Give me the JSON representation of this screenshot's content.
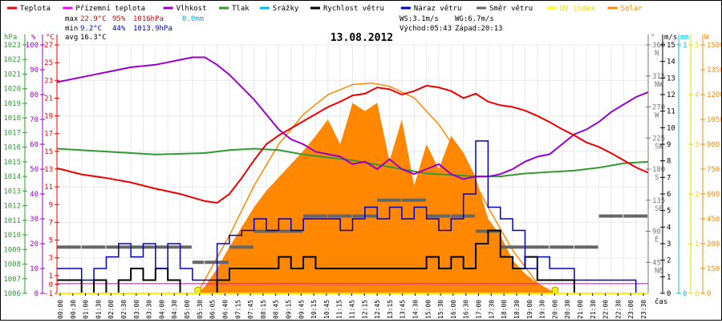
{
  "chart_data": {
    "type": "line",
    "title": "13.08.2012",
    "legend_position": "top",
    "grid": true,
    "legend": [
      {
        "name": "Teplota",
        "color": "#ff0000"
      },
      {
        "name": "Přízemní teplota",
        "color": "#ff00ff"
      },
      {
        "name": "Vlhkost",
        "color": "#9900cc"
      },
      {
        "name": "Tlak",
        "color": "#339933"
      },
      {
        "name": "Srážky",
        "color": "#00bbee"
      },
      {
        "name": "Rychlost větru",
        "color": "#000000"
      },
      {
        "name": "Náraz větru",
        "color": "#0000bb"
      },
      {
        "name": "Směr větru",
        "color": "#666666"
      },
      {
        "name": "UV index",
        "color": "#ffff00"
      },
      {
        "name": "Solar",
        "color": "#ff8800"
      }
    ],
    "stats": {
      "max_label": "max",
      "min_label": "min",
      "avg_label": "avg",
      "max_temp": "22.9°C",
      "max_hum": "95%",
      "max_press": "1016hPa",
      "max_rain": "0.0mm",
      "min_temp": "9.2°C",
      "min_hum": "44%",
      "min_press": "1013.9hPa",
      "avg_temp": "16.3°C",
      "ws": "WS:3.1m/s",
      "wg": "WG:6.7m/s",
      "sunrise": "Východ:05:43",
      "sunset": "Západ:20:13"
    },
    "axes": {
      "pressure": {
        "unit": "hPa",
        "range": [
          1006,
          1023
        ],
        "ticks": [
          "1023",
          "1022",
          "1021",
          "1020",
          "1019",
          "1018",
          "1017",
          "1016",
          "1015",
          "1014",
          "1013",
          "1012",
          "1011",
          "1010",
          "1009",
          "1008",
          "1007",
          "1006"
        ]
      },
      "humidity": {
        "unit": "%",
        "range": [
          0,
          100
        ],
        "ticks": [
          "100",
          "90",
          "80",
          "70",
          "60",
          "50",
          "40",
          "30",
          "20",
          "10",
          "0"
        ]
      },
      "temperature": {
        "unit": "°C",
        "range": [
          -1,
          27
        ],
        "ticks": [
          "27",
          "25",
          "23",
          "21",
          "19",
          "17",
          "15",
          "13",
          "11",
          "9",
          "7",
          "5",
          "3",
          "1",
          "0",
          "-1"
        ]
      },
      "direction": {
        "unit": "°",
        "range": [
          0,
          360
        ],
        "ticks": [
          {
            "v": "360",
            "d": "N"
          },
          {
            "v": "315",
            "d": "NW"
          },
          {
            "v": "270",
            "d": "W"
          },
          {
            "v": "225",
            "d": "SW"
          },
          {
            "v": "180",
            "d": "S"
          },
          {
            "v": "135",
            "d": "SE"
          },
          {
            "v": "90",
            "d": "E"
          },
          {
            "v": "45",
            "d": "NE"
          }
        ]
      },
      "wind": {
        "unit": "m/s",
        "range": [
          0,
          15
        ],
        "ticks": [
          "15",
          "14",
          "13",
          "12",
          "11",
          "10",
          "9",
          "8",
          "7",
          "6",
          "5",
          "4",
          "3",
          "2",
          "1",
          "0"
        ]
      },
      "rain": {
        "unit": "mm",
        "range": [
          0,
          1
        ],
        "ticks": [
          "1",
          "0"
        ]
      },
      "uv": {
        "unit": "",
        "range": [
          0,
          5
        ],
        "ticks": [
          "5",
          "4",
          "3",
          "2",
          "1",
          "0"
        ]
      },
      "solar": {
        "unit": "W",
        "range": [
          0,
          1500
        ],
        "ticks": [
          "1500",
          "1350",
          "1200",
          "1050",
          "900",
          "750",
          "600",
          "450",
          "300",
          "150",
          "0"
        ]
      }
    },
    "xlabel": "čas",
    "x_ticks": [
      "00:00",
      "00:30",
      "01:00",
      "01:30",
      "02:00",
      "02:30",
      "03:00",
      "03:30",
      "04:00",
      "04:30",
      "05:00",
      "05:30",
      "06:05",
      "06:40",
      "07:15",
      "07:45",
      "08:15",
      "08:45",
      "09:15",
      "09:45",
      "10:15",
      "10:45",
      "11:15",
      "11:45",
      "12:15",
      "12:45",
      "13:15",
      "13:45",
      "14:30",
      "15:00",
      "15:30",
      "16:00",
      "16:30",
      "17:00",
      "17:30",
      "18:00",
      "18:30",
      "19:00",
      "19:30",
      "20:00",
      "20:30",
      "21:00",
      "21:30",
      "22:00",
      "22:30",
      "23:00",
      "23:30"
    ],
    "series": [
      {
        "name": "Teplota",
        "axis": "temperature",
        "x": [
          0,
          1,
          2,
          3,
          4,
          5,
          5.5,
          6,
          6.5,
          7,
          7.5,
          8,
          8.5,
          9,
          9.5,
          10,
          10.5,
          11,
          11.5,
          12,
          12.5,
          13,
          13.5,
          14,
          14.5,
          15,
          15.5,
          16,
          16.5,
          17,
          17.5,
          18,
          18.5,
          19,
          19.5,
          20,
          20.5,
          21,
          21.5,
          22,
          22.5,
          23,
          23.5,
          24
        ],
        "values": [
          13.1,
          12.4,
          12.0,
          11.5,
          10.8,
          10.2,
          9.8,
          9.4,
          9.2,
          10.2,
          12.0,
          14.0,
          15.8,
          16.8,
          17.6,
          18.4,
          19.2,
          20.0,
          20.6,
          21.3,
          21.5,
          22.2,
          22.0,
          21.4,
          21.8,
          22.4,
          22.2,
          21.8,
          21.0,
          21.5,
          20.6,
          20.2,
          20.0,
          19.6,
          19.0,
          18.3,
          17.5,
          16.8,
          16.0,
          15.5,
          14.8,
          14.0,
          13.2,
          12.6
        ]
      },
      {
        "name": "Přízemní teplota",
        "axis": "temperature",
        "x": [
          0,
          24
        ],
        "values": [
          0.1,
          0.1
        ]
      },
      {
        "name": "Vlhkost",
        "axis": "humidity",
        "x": [
          0,
          1,
          2,
          3,
          4,
          5,
          5.5,
          6,
          6.5,
          7,
          7.5,
          8,
          8.5,
          9,
          9.5,
          10,
          10.5,
          11,
          11.5,
          12,
          12.5,
          13,
          13.5,
          14,
          14.5,
          15,
          15.5,
          16,
          16.5,
          17,
          17.5,
          18,
          18.5,
          19,
          19.5,
          20,
          20.5,
          21,
          21.5,
          22,
          22.5,
          23,
          23.5,
          24
        ],
        "values": [
          85,
          87,
          89,
          91,
          92,
          94,
          95,
          95,
          92,
          88,
          83,
          78,
          72,
          66,
          62,
          60,
          57,
          56,
          55,
          52,
          53,
          50,
          54,
          50,
          48,
          50,
          52,
          48,
          46,
          47,
          47,
          48,
          50,
          53,
          55,
          56,
          60,
          64,
          66,
          69,
          73,
          76,
          79,
          81
        ]
      },
      {
        "name": "Tlak",
        "axis": "pressure",
        "x": [
          0,
          2,
          4,
          6,
          7,
          8,
          9,
          10,
          11,
          12,
          13,
          14,
          15,
          16,
          17,
          18,
          19,
          20,
          21,
          22,
          23,
          24
        ],
        "values": [
          1015.9,
          1015.7,
          1015.5,
          1015.6,
          1015.8,
          1015.9,
          1015.8,
          1015.5,
          1015.3,
          1015.1,
          1014.8,
          1014.5,
          1014.2,
          1014.1,
          1014.0,
          1014.0,
          1014.2,
          1014.3,
          1014.4,
          1014.6,
          1014.9,
          1015.0
        ]
      },
      {
        "name": "Srážky",
        "axis": "rain",
        "x": [
          0,
          24
        ],
        "values": [
          0,
          0
        ]
      },
      {
        "name": "Rychlost větru",
        "axis": "wind",
        "x": [
          0,
          0.5,
          1,
          1.5,
          2,
          2.5,
          3,
          3.5,
          4,
          4.5,
          5,
          5.5,
          6,
          6.5,
          7,
          7.5,
          8,
          8.5,
          9,
          9.5,
          10,
          10.5,
          11,
          11.5,
          12,
          12.5,
          13,
          13.5,
          14,
          14.5,
          15,
          15.5,
          16,
          16.5,
          17,
          17.5,
          18,
          18.5,
          19,
          19.5,
          20,
          20.5,
          21,
          21.5,
          22,
          22.5,
          23,
          23.5,
          24
        ],
        "values": [
          0.8,
          0.8,
          0,
          0.8,
          0,
          0.8,
          1.5,
          0.8,
          1.5,
          0.8,
          0,
          0,
          0,
          0.8,
          1.5,
          1.5,
          1.5,
          1.5,
          2.2,
          1.5,
          2.2,
          1.5,
          1.5,
          1.5,
          1.5,
          1.5,
          1.5,
          1.5,
          1.5,
          1.5,
          2.2,
          1.5,
          2.2,
          1.5,
          3.0,
          3.8,
          2.2,
          1.5,
          2.2,
          0.8,
          0.8,
          0.8,
          0,
          0,
          0,
          0,
          0,
          0,
          0
        ]
      },
      {
        "name": "Náraz větru",
        "axis": "wind",
        "x": [
          0,
          0.5,
          1,
          1.5,
          2,
          2.5,
          3,
          3.5,
          4,
          4.5,
          5,
          5.5,
          6,
          6.5,
          7,
          7.5,
          8,
          8.5,
          9,
          9.5,
          10,
          10.5,
          11,
          11.5,
          12,
          12.5,
          13,
          13.5,
          14,
          14.5,
          15,
          15.5,
          16,
          16.5,
          17,
          17.5,
          18,
          18.5,
          19,
          19.5,
          20,
          20.5,
          21,
          21.5,
          22,
          22.5,
          23,
          23.5,
          24
        ],
        "values": [
          1.5,
          1.5,
          0.8,
          1.5,
          2.2,
          3.0,
          2.2,
          3.0,
          1.5,
          3.0,
          1.5,
          0.8,
          0.8,
          3.0,
          3.5,
          3.8,
          4.5,
          3.8,
          4.5,
          3.8,
          4.5,
          4.5,
          4.5,
          3.8,
          4.5,
          5.2,
          4.5,
          5.2,
          4.5,
          5.2,
          4.5,
          3.8,
          4.5,
          6.0,
          9.2,
          5.2,
          4.5,
          3.8,
          1.5,
          2.2,
          1.5,
          1.5,
          0.8,
          0.8,
          0.8,
          0.8,
          0.8,
          0,
          0
        ]
      },
      {
        "name": "Směr větru",
        "axis": "direction",
        "x": [
          0,
          1,
          2,
          3,
          4,
          5,
          5.5,
          6,
          7,
          8,
          9,
          10,
          11,
          12,
          13,
          14,
          15,
          16,
          17,
          18,
          19,
          20,
          21,
          22,
          23,
          24
        ],
        "values": [
          67,
          67,
          67,
          67,
          67,
          67,
          45,
          45,
          67,
          90,
          90,
          112,
          112,
          112,
          135,
          135,
          112,
          112,
          90,
          67,
          67,
          67,
          67,
          112,
          112,
          112
        ]
      },
      {
        "name": "UV index",
        "axis": "uv",
        "x": [
          0,
          24
        ],
        "values": [
          0,
          0
        ]
      },
      {
        "name": "Solar",
        "axis": "solar",
        "x": [
          5.7,
          6,
          6.5,
          7,
          7.5,
          8,
          8.5,
          9,
          9.5,
          10,
          10.5,
          11,
          11.5,
          12,
          12.5,
          13,
          13.5,
          14,
          14.5,
          15,
          15.5,
          16,
          16.5,
          17,
          17.5,
          18,
          18.5,
          19,
          19.5,
          20,
          20.2
        ],
        "values": [
          0,
          40,
          150,
          280,
          400,
          520,
          620,
          700,
          780,
          860,
          950,
          1050,
          900,
          1150,
          1100,
          1150,
          800,
          1050,
          650,
          900,
          750,
          950,
          850,
          700,
          450,
          350,
          200,
          120,
          60,
          20,
          0
        ]
      },
      {
        "name": "Solar max",
        "axis": "solar",
        "x": [
          5.7,
          7,
          8,
          9,
          10,
          11,
          12,
          12.75,
          13.5,
          14.5,
          15.5,
          16.5,
          17.5,
          18.5,
          19.5,
          20.2
        ],
        "values": [
          0,
          350,
          650,
          900,
          1080,
          1200,
          1260,
          1270,
          1250,
          1180,
          1020,
          800,
          520,
          260,
          60,
          0
        ]
      }
    ]
  }
}
